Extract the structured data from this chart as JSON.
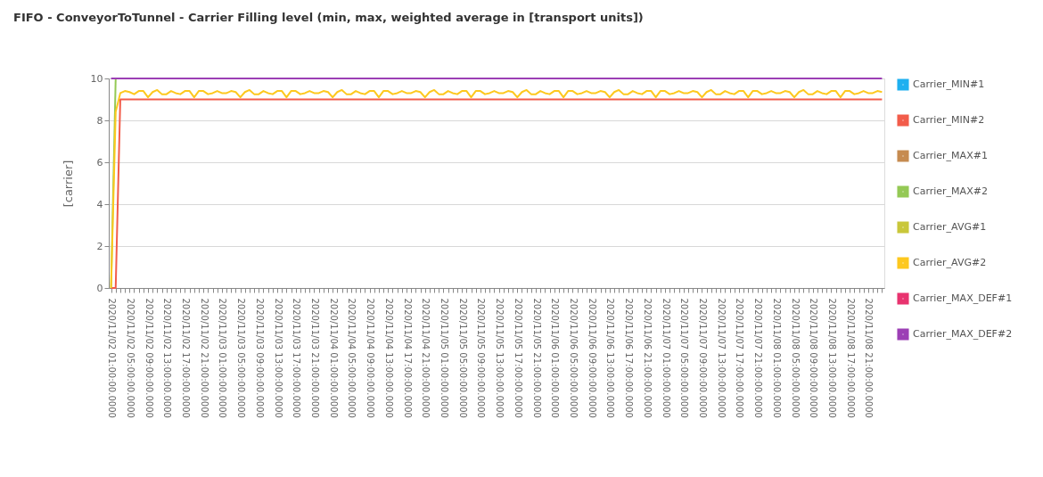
{
  "chart_data": {
    "type": "line",
    "title": "FIFO - ConveyorToTunnel - Carrier Filling level (min, max, weighted average in [transport units])",
    "ylabel": "[carrier]",
    "categories": [
      "2020/11/02 01:00:00.0000",
      null,
      null,
      null,
      "2020/11/02 05:00:00.0000",
      null,
      null,
      null,
      "2020/11/02 09:00:00.0000",
      null,
      null,
      null,
      "2020/11/02 13:00:00.0000",
      null,
      null,
      null,
      "2020/11/02 17:00:00.0000",
      null,
      null,
      null,
      "2020/11/02 21:00:00.0000",
      null,
      null,
      null,
      "2020/11/03 01:00:00.0000",
      null,
      null,
      null,
      "2020/11/03 05:00:00.0000",
      null,
      null,
      null,
      "2020/11/03 09:00:00.0000",
      null,
      null,
      null,
      "2020/11/03 13:00:00.0000",
      null,
      null,
      null,
      "2020/11/03 17:00:00.0000",
      null,
      null,
      null,
      "2020/11/03 21:00:00.0000",
      null,
      null,
      null,
      "2020/11/04 01:00:00.0000",
      null,
      null,
      null,
      "2020/11/04 05:00:00.0000",
      null,
      null,
      null,
      "2020/11/04 09:00:00.0000",
      null,
      null,
      null,
      "2020/11/04 13:00:00.0000",
      null,
      null,
      null,
      "2020/11/04 17:00:00.0000",
      null,
      null,
      null,
      "2020/11/04 21:00:00.0000",
      null,
      null,
      null,
      "2020/11/05 01:00:00.0000",
      null,
      null,
      null,
      "2020/11/05 05:00:00.0000",
      null,
      null,
      null,
      "2020/11/05 09:00:00.0000",
      null,
      null,
      null,
      "2020/11/05 13:00:00.0000",
      null,
      null,
      null,
      "2020/11/05 17:00:00.0000",
      null,
      null,
      null,
      "2020/11/05 21:00:00.0000",
      null,
      null,
      null,
      "2020/11/06 01:00:00.0000",
      null,
      null,
      null,
      "2020/11/06 05:00:00.0000",
      null,
      null,
      null,
      "2020/11/06 09:00:00.0000",
      null,
      null,
      null,
      "2020/11/06 13:00:00.0000",
      null,
      null,
      null,
      "2020/11/06 17:00:00.0000",
      null,
      null,
      null,
      "2020/11/06 21:00:00.0000",
      null,
      null,
      null,
      "2020/11/07 01:00:00.0000",
      null,
      null,
      null,
      "2020/11/07 05:00:00.0000",
      null,
      null,
      null,
      "2020/11/07 09:00:00.0000",
      null,
      null,
      null,
      "2020/11/07 13:00:00.0000",
      null,
      null,
      null,
      "2020/11/07 17:00:00.0000",
      null,
      null,
      null,
      "2020/11/07 21:00:00.0000",
      null,
      null,
      null,
      "2020/11/08 01:00:00.0000",
      null,
      null,
      null,
      "2020/11/08 05:00:00.0000",
      null,
      null,
      null,
      "2020/11/08 09:00:00.0000",
      null,
      null,
      null,
      "2020/11/08 13:00:00.0000",
      null,
      null,
      null,
      "2020/11/08 17:00:00.0000",
      null,
      null,
      null,
      "2020/11/08 21:00:00.0000",
      null,
      null,
      null
    ],
    "ylim": [
      0,
      10
    ],
    "yticks": [
      0,
      2,
      4,
      6,
      8,
      10
    ],
    "grid": "y",
    "legend": "right",
    "marker": "none",
    "line_style": "solid",
    "series": [
      {
        "name": "Carrier_MIN#1",
        "color": "#1eb0f0",
        "values": [
          null,
          null,
          null,
          null,
          null,
          null,
          null,
          null,
          null,
          null,
          null,
          null,
          null,
          null,
          null,
          null,
          null,
          null,
          null,
          null,
          null,
          null,
          null,
          null,
          null,
          null,
          null,
          null,
          null,
          null,
          null,
          null,
          null,
          null,
          null,
          null,
          null,
          null,
          null,
          null,
          null,
          null,
          null,
          null,
          null,
          null,
          null,
          null,
          null,
          null,
          null,
          null,
          null,
          null,
          null,
          null,
          null,
          null,
          null,
          null,
          null,
          null,
          null,
          null,
          null,
          null,
          null,
          null,
          null,
          null,
          null,
          null,
          null,
          null,
          null,
          null,
          null,
          null,
          null,
          null,
          null,
          null,
          null,
          null,
          null,
          null,
          null,
          null,
          null,
          null,
          null,
          null,
          null,
          null,
          null,
          null,
          null,
          null,
          null,
          null,
          null,
          null,
          null,
          null,
          null,
          null,
          null,
          null,
          null,
          null,
          null,
          null,
          null,
          null,
          null,
          null,
          null,
          null,
          null,
          null,
          null,
          null,
          null,
          null,
          null,
          null,
          null,
          null,
          null,
          null,
          null,
          null,
          null,
          null,
          null,
          null,
          null,
          null,
          null,
          null,
          null,
          null,
          null,
          null,
          null,
          null,
          null,
          null,
          null,
          null,
          null,
          null,
          null,
          null,
          null,
          null,
          null,
          null,
          null,
          null,
          null,
          null,
          null,
          null,
          null,
          null,
          null,
          null
        ]
      },
      {
        "name": "Carrier_MIN#2",
        "color": "#f25c4a",
        "values": [
          0,
          0,
          9,
          9,
          9,
          9,
          9,
          9,
          9,
          9,
          9,
          9,
          9,
          9,
          9,
          9,
          9,
          9,
          9,
          9,
          9,
          9,
          9,
          9,
          9,
          9,
          9,
          9,
          9,
          9,
          9,
          9,
          9,
          9,
          9,
          9,
          9,
          9,
          9,
          9,
          9,
          9,
          9,
          9,
          9,
          9,
          9,
          9,
          9,
          9,
          9,
          9,
          9,
          9,
          9,
          9,
          9,
          9,
          9,
          9,
          9,
          9,
          9,
          9,
          9,
          9,
          9,
          9,
          9,
          9,
          9,
          9,
          9,
          9,
          9,
          9,
          9,
          9,
          9,
          9,
          9,
          9,
          9,
          9,
          9,
          9,
          9,
          9,
          9,
          9,
          9,
          9,
          9,
          9,
          9,
          9,
          9,
          9,
          9,
          9,
          9,
          9,
          9,
          9,
          9,
          9,
          9,
          9,
          9,
          9,
          9,
          9,
          9,
          9,
          9,
          9,
          9,
          9,
          9,
          9,
          9,
          9,
          9,
          9,
          9,
          9,
          9,
          9,
          9,
          9,
          9,
          9,
          9,
          9,
          9,
          9,
          9,
          9,
          9,
          9,
          9,
          9,
          9,
          9,
          9,
          9,
          9,
          9,
          9,
          9,
          9,
          9,
          9,
          9,
          9,
          9,
          9,
          9,
          9,
          9,
          9,
          9,
          9,
          9,
          9,
          9,
          9,
          9
        ]
      },
      {
        "name": "Carrier_MAX#1",
        "color": "#c68b50",
        "values": [
          null,
          null,
          null,
          null,
          null,
          null,
          null,
          null,
          null,
          null,
          null,
          null,
          null,
          null,
          null,
          null,
          null,
          null,
          null,
          null,
          null,
          null,
          null,
          null,
          null,
          null,
          null,
          null,
          null,
          null,
          null,
          null,
          null,
          null,
          null,
          null,
          null,
          null,
          null,
          null,
          null,
          null,
          null,
          null,
          null,
          null,
          null,
          null,
          null,
          null,
          null,
          null,
          null,
          null,
          null,
          null,
          null,
          null,
          null,
          null,
          null,
          null,
          null,
          null,
          null,
          null,
          null,
          null,
          null,
          null,
          null,
          null,
          null,
          null,
          null,
          null,
          null,
          null,
          null,
          null,
          null,
          null,
          null,
          null,
          null,
          null,
          null,
          null,
          null,
          null,
          null,
          null,
          null,
          null,
          null,
          null,
          null,
          null,
          null,
          null,
          null,
          null,
          null,
          null,
          null,
          null,
          null,
          null,
          null,
          null,
          null,
          null,
          null,
          null,
          null,
          null,
          null,
          null,
          null,
          null,
          null,
          null,
          null,
          null,
          null,
          null,
          null,
          null,
          null,
          null,
          null,
          null,
          null,
          null,
          null,
          null,
          null,
          null,
          null,
          null,
          null,
          null,
          null,
          null,
          null,
          null,
          null,
          null,
          null,
          null,
          null,
          null,
          null,
          null,
          null,
          null,
          null,
          null,
          null,
          null,
          null,
          null,
          null,
          null,
          null,
          null,
          null,
          null
        ]
      },
      {
        "name": "Carrier_MAX#2",
        "color": "#94c955",
        "values": [
          0,
          10,
          null,
          null,
          null,
          null,
          null,
          null,
          null,
          null,
          null,
          null,
          null,
          null,
          null,
          null,
          null,
          null,
          null,
          null,
          null,
          null,
          null,
          null,
          null,
          null,
          null,
          null,
          null,
          null,
          null,
          null,
          null,
          null,
          null,
          null,
          null,
          null,
          null,
          null,
          null,
          null,
          null,
          null,
          null,
          null,
          null,
          null,
          null,
          null,
          null,
          null,
          null,
          null,
          null,
          null,
          null,
          null,
          null,
          null,
          null,
          null,
          null,
          null,
          null,
          null,
          null,
          null,
          null,
          null,
          null,
          null,
          null,
          null,
          null,
          null,
          null,
          null,
          null,
          null,
          null,
          null,
          null,
          null,
          null,
          null,
          null,
          null,
          null,
          null,
          null,
          null,
          null,
          null,
          null,
          null,
          null,
          null,
          null,
          null,
          null,
          null,
          null,
          null,
          null,
          null,
          null,
          null,
          null,
          null,
          null,
          null,
          null,
          null,
          null,
          null,
          null,
          null,
          null,
          null,
          null,
          null,
          null,
          null,
          null,
          null,
          null,
          null,
          null,
          null,
          null,
          null,
          null,
          null,
          null,
          null,
          null,
          null,
          null,
          null,
          null,
          null,
          null,
          null,
          null,
          null,
          null,
          null,
          null,
          null,
          null,
          null,
          null,
          null,
          null,
          null,
          null,
          null,
          null,
          null,
          null,
          null,
          null,
          null,
          null,
          null,
          null,
          null
        ]
      },
      {
        "name": "Carrier_AVG#1",
        "color": "#c9c73a",
        "values": [
          null,
          null,
          null,
          null,
          null,
          null,
          null,
          null,
          null,
          null,
          null,
          null,
          null,
          null,
          null,
          null,
          null,
          null,
          null,
          null,
          null,
          null,
          null,
          null,
          null,
          null,
          null,
          null,
          null,
          null,
          null,
          null,
          null,
          null,
          null,
          null,
          null,
          null,
          null,
          null,
          null,
          null,
          null,
          null,
          null,
          null,
          null,
          null,
          null,
          null,
          null,
          null,
          null,
          null,
          null,
          null,
          null,
          null,
          null,
          null,
          null,
          null,
          null,
          null,
          null,
          null,
          null,
          null,
          null,
          null,
          null,
          null,
          null,
          null,
          null,
          null,
          null,
          null,
          null,
          null,
          null,
          null,
          null,
          null,
          null,
          null,
          null,
          null,
          null,
          null,
          null,
          null,
          null,
          null,
          null,
          null,
          null,
          null,
          null,
          null,
          null,
          null,
          null,
          null,
          null,
          null,
          null,
          null,
          null,
          null,
          null,
          null,
          null,
          null,
          null,
          null,
          null,
          null,
          null,
          null,
          null,
          null,
          null,
          null,
          null,
          null,
          null,
          null,
          null,
          null,
          null,
          null,
          null,
          null,
          null,
          null,
          null,
          null,
          null,
          null,
          null,
          null,
          null,
          null,
          null,
          null,
          null,
          null,
          null,
          null,
          null,
          null,
          null,
          null,
          null,
          null,
          null,
          null,
          null,
          null,
          null,
          null,
          null,
          null,
          null,
          null,
          null,
          null
        ]
      },
      {
        "name": "Carrier_AVG#2",
        "color": "#fdc81e",
        "values": [
          0,
          8.4,
          9.3,
          9.4,
          9.35,
          9.25,
          9.4,
          9.4,
          9.1,
          9.35,
          9.45,
          9.25,
          9.25,
          9.4,
          9.3,
          9.25,
          9.4,
          9.4,
          9.1,
          9.4,
          9.4,
          9.25,
          9.3,
          9.4,
          9.3,
          9.3,
          9.4,
          9.35,
          9.1,
          9.35,
          9.45,
          9.25,
          9.25,
          9.4,
          9.3,
          9.25,
          9.4,
          9.4,
          9.1,
          9.4,
          9.4,
          9.25,
          9.3,
          9.4,
          9.3,
          9.3,
          9.4,
          9.35,
          9.1,
          9.35,
          9.45,
          9.25,
          9.25,
          9.4,
          9.3,
          9.25,
          9.4,
          9.4,
          9.1,
          9.4,
          9.4,
          9.25,
          9.3,
          9.4,
          9.3,
          9.3,
          9.4,
          9.35,
          9.1,
          9.35,
          9.45,
          9.25,
          9.25,
          9.4,
          9.3,
          9.25,
          9.4,
          9.4,
          9.1,
          9.4,
          9.4,
          9.25,
          9.3,
          9.4,
          9.3,
          9.3,
          9.4,
          9.35,
          9.1,
          9.35,
          9.45,
          9.25,
          9.25,
          9.4,
          9.3,
          9.25,
          9.4,
          9.4,
          9.1,
          9.4,
          9.4,
          9.25,
          9.3,
          9.4,
          9.3,
          9.3,
          9.4,
          9.35,
          9.1,
          9.35,
          9.45,
          9.25,
          9.25,
          9.4,
          9.3,
          9.25,
          9.4,
          9.4,
          9.1,
          9.4,
          9.4,
          9.25,
          9.3,
          9.4,
          9.3,
          9.3,
          9.4,
          9.35,
          9.1,
          9.35,
          9.45,
          9.25,
          9.25,
          9.4,
          9.3,
          9.25,
          9.4,
          9.4,
          9.1,
          9.4,
          9.4,
          9.25,
          9.3,
          9.4,
          9.3,
          9.3,
          9.4,
          9.35,
          9.1,
          9.35,
          9.45,
          9.25,
          9.25,
          9.4,
          9.3,
          9.25,
          9.4,
          9.4,
          9.1,
          9.4,
          9.4,
          9.25,
          9.3,
          9.4,
          9.3,
          9.3,
          9.4,
          9.35
        ]
      },
      {
        "name": "Carrier_MAX_DEF#1",
        "color": "#e8336f",
        "values": [
          null,
          null,
          null,
          null,
          null,
          null,
          null,
          null,
          null,
          null,
          null,
          null,
          null,
          null,
          null,
          null,
          null,
          null,
          null,
          null,
          null,
          null,
          null,
          null,
          null,
          null,
          null,
          null,
          null,
          null,
          null,
          null,
          null,
          null,
          null,
          null,
          null,
          null,
          null,
          null,
          null,
          null,
          null,
          null,
          null,
          null,
          null,
          null,
          null,
          null,
          null,
          null,
          null,
          null,
          null,
          null,
          null,
          null,
          null,
          null,
          null,
          null,
          null,
          null,
          null,
          null,
          null,
          null,
          null,
          null,
          null,
          null,
          null,
          null,
          null,
          null,
          null,
          null,
          null,
          null,
          null,
          null,
          null,
          null,
          null,
          null,
          null,
          null,
          null,
          null,
          null,
          null,
          null,
          null,
          null,
          null,
          null,
          null,
          null,
          null,
          null,
          null,
          null,
          null,
          null,
          null,
          null,
          null,
          null,
          null,
          null,
          null,
          null,
          null,
          null,
          null,
          null,
          null,
          null,
          null,
          null,
          null,
          null,
          null,
          null,
          null,
          null,
          null,
          null,
          null,
          null,
          null,
          null,
          null,
          null,
          null,
          null,
          null,
          null,
          null,
          null,
          null,
          null,
          null,
          null,
          null,
          null,
          null,
          null,
          null,
          null,
          null,
          null,
          null,
          null,
          null,
          null,
          null,
          null,
          null,
          null,
          null,
          null,
          null,
          null,
          null,
          null,
          null
        ]
      },
      {
        "name": "Carrier_MAX_DEF#2",
        "color": "#9c3fb5",
        "values": [
          10,
          10,
          10,
          10,
          10,
          10,
          10,
          10,
          10,
          10,
          10,
          10,
          10,
          10,
          10,
          10,
          10,
          10,
          10,
          10,
          10,
          10,
          10,
          10,
          10,
          10,
          10,
          10,
          10,
          10,
          10,
          10,
          10,
          10,
          10,
          10,
          10,
          10,
          10,
          10,
          10,
          10,
          10,
          10,
          10,
          10,
          10,
          10,
          10,
          10,
          10,
          10,
          10,
          10,
          10,
          10,
          10,
          10,
          10,
          10,
          10,
          10,
          10,
          10,
          10,
          10,
          10,
          10,
          10,
          10,
          10,
          10,
          10,
          10,
          10,
          10,
          10,
          10,
          10,
          10,
          10,
          10,
          10,
          10,
          10,
          10,
          10,
          10,
          10,
          10,
          10,
          10,
          10,
          10,
          10,
          10,
          10,
          10,
          10,
          10,
          10,
          10,
          10,
          10,
          10,
          10,
          10,
          10,
          10,
          10,
          10,
          10,
          10,
          10,
          10,
          10,
          10,
          10,
          10,
          10,
          10,
          10,
          10,
          10,
          10,
          10,
          10,
          10,
          10,
          10,
          10,
          10,
          10,
          10,
          10,
          10,
          10,
          10,
          10,
          10,
          10,
          10,
          10,
          10,
          10,
          10,
          10,
          10,
          10,
          10,
          10,
          10,
          10,
          10,
          10,
          10,
          10,
          10,
          10,
          10,
          10,
          10,
          10,
          10,
          10,
          10,
          10,
          10
        ]
      }
    ]
  }
}
